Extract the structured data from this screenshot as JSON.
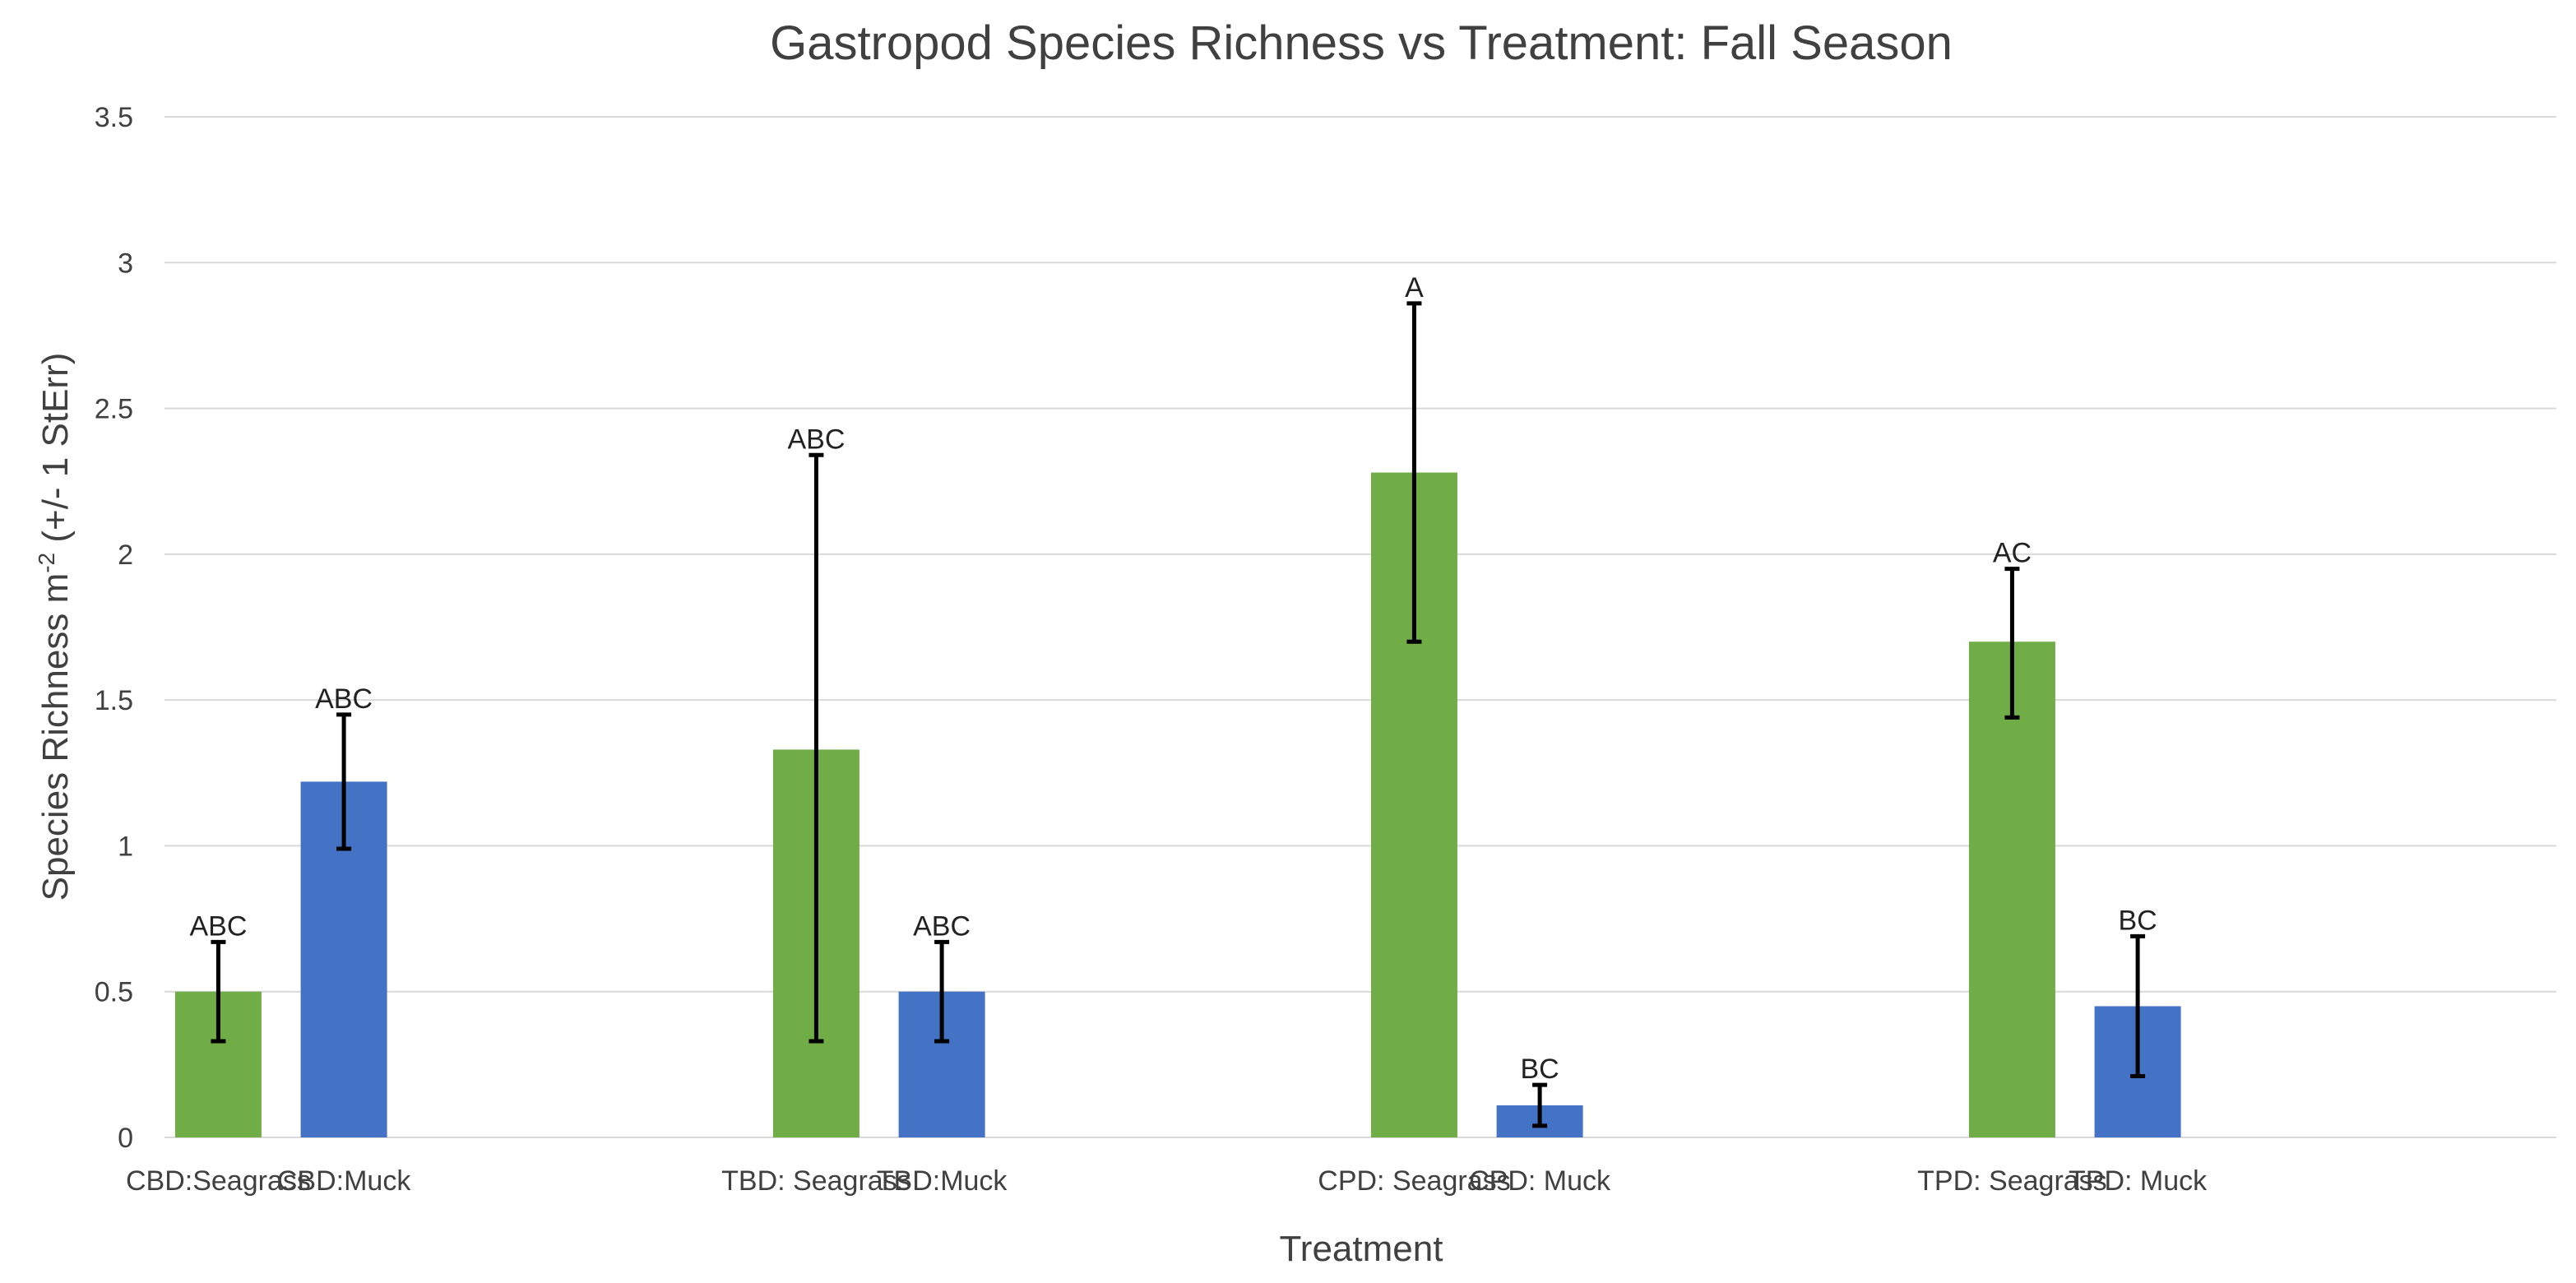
{
  "chart_data": {
    "type": "bar",
    "title": "Gastropod Species Richness vs Treatment: Fall Season",
    "xlabel": "Treatment",
    "ylabel": "Species Richness m",
    "ylabel_superscript": "-2",
    "ylabel_suffix": " (+/- 1 StErr)",
    "ylim": [
      0,
      3.5
    ],
    "yticks": [
      "0",
      "0.5",
      "1",
      "1.5",
      "2",
      "2.5",
      "3",
      "3.5"
    ],
    "grid": true,
    "colors": {
      "seagrass": "#70ad47",
      "muck": "#4472c4"
    },
    "bars": [
      {
        "category": "CBD:Seagrass",
        "group": "CBD",
        "habitat": "seagrass",
        "value": 0.5,
        "err_low": 0.33,
        "err_high": 0.67,
        "sig": "ABC"
      },
      {
        "category": "CBD:Muck",
        "group": "CBD",
        "habitat": "muck",
        "value": 1.22,
        "err_low": 0.99,
        "err_high": 1.45,
        "sig": "ABC"
      },
      {
        "category": "TBD: Seagrass",
        "group": "TBD",
        "habitat": "seagrass",
        "value": 1.33,
        "err_low": 0.33,
        "err_high": 2.34,
        "sig": "ABC"
      },
      {
        "category": "TBD:Muck",
        "group": "TBD",
        "habitat": "muck",
        "value": 0.5,
        "err_low": 0.33,
        "err_high": 0.67,
        "sig": "ABC"
      },
      {
        "category": "CPD: Seagrass",
        "group": "CPD",
        "habitat": "seagrass",
        "value": 2.28,
        "err_low": 1.7,
        "err_high": 2.86,
        "sig": "A"
      },
      {
        "category": "CPD: Muck",
        "group": "CPD",
        "habitat": "muck",
        "value": 0.11,
        "err_low": 0.04,
        "err_high": 0.18,
        "sig": "BC"
      },
      {
        "category": "TPD: Seagrass",
        "group": "TPD",
        "habitat": "seagrass",
        "value": 1.7,
        "err_low": 1.44,
        "err_high": 1.95,
        "sig": "AC"
      },
      {
        "category": "TPD: Muck",
        "group": "TPD",
        "habitat": "muck",
        "value": 0.45,
        "err_low": 0.21,
        "err_high": 0.69,
        "sig": "BC"
      }
    ]
  }
}
